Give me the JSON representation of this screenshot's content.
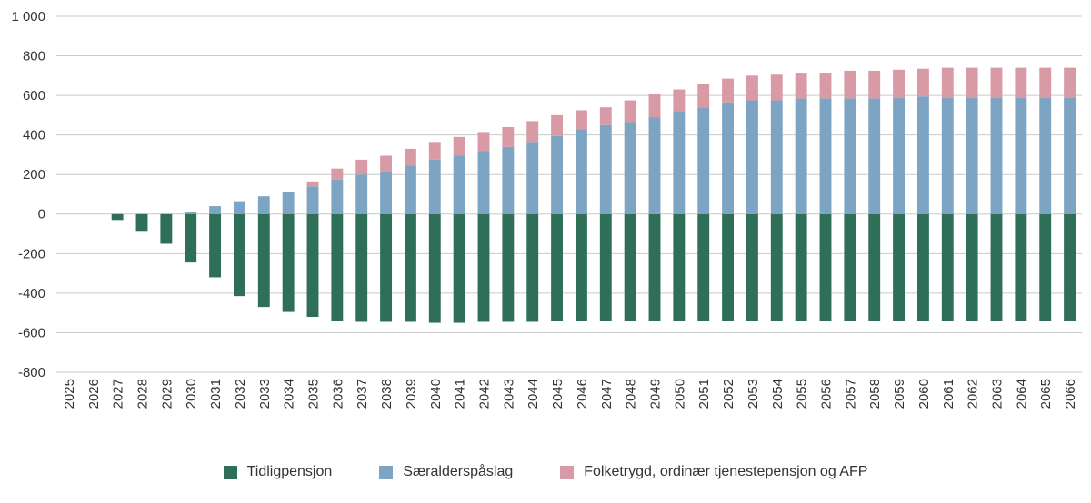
{
  "chart_data": {
    "type": "bar",
    "stacked": true,
    "title": "",
    "xlabel": "",
    "ylabel": "",
    "grid": true,
    "legend_position": "bottom",
    "ylim": [
      -800,
      1000
    ],
    "yticks": [
      1000,
      800,
      600,
      400,
      200,
      0,
      -200,
      -400,
      -600,
      -800
    ],
    "ytick_labels": [
      "1 000",
      "800",
      "600",
      "400",
      "200",
      "0",
      "-200",
      "-400",
      "-600",
      "-800"
    ],
    "categories": [
      "2025",
      "2026",
      "2027",
      "2028",
      "2029",
      "2030",
      "2031",
      "2032",
      "2033",
      "2034",
      "2035",
      "2036",
      "2037",
      "2038",
      "2039",
      "2040",
      "2041",
      "2042",
      "2043",
      "2044",
      "2045",
      "2046",
      "2047",
      "2048",
      "2049",
      "2050",
      "2051",
      "2052",
      "2053",
      "2054",
      "2055",
      "2056",
      "2057",
      "2058",
      "2059",
      "2060",
      "2061",
      "2062",
      "2063",
      "2064",
      "2065",
      "2066"
    ],
    "series": [
      {
        "name": "Tidligpensjon",
        "color": "#2f6f57",
        "values": [
          0,
          0,
          -30,
          -85,
          -150,
          -245,
          -320,
          -415,
          -470,
          -495,
          -520,
          -540,
          -545,
          -545,
          -545,
          -550,
          -550,
          -545,
          -545,
          -545,
          -540,
          -540,
          -540,
          -540,
          -540,
          -540,
          -540,
          -540,
          -540,
          -540,
          -540,
          -540,
          -540,
          -540,
          -540,
          -540,
          -540,
          -540,
          -540,
          -540,
          -540,
          -540
        ]
      },
      {
        "name": "Særalderspåslag",
        "color": "#7da5c3",
        "values": [
          0,
          0,
          0,
          0,
          0,
          10,
          40,
          65,
          90,
          110,
          140,
          175,
          200,
          215,
          245,
          275,
          295,
          320,
          340,
          365,
          395,
          430,
          450,
          465,
          490,
          520,
          540,
          565,
          575,
          575,
          585,
          585,
          585,
          585,
          590,
          595,
          590,
          590,
          590,
          590,
          590,
          590
        ]
      },
      {
        "name": "Folketrygd, ordinær tjenestepensjon og AFP",
        "color": "#d89ba6",
        "values": [
          0,
          0,
          0,
          0,
          0,
          0,
          0,
          0,
          0,
          0,
          25,
          55,
          75,
          80,
          85,
          90,
          95,
          95,
          100,
          105,
          105,
          95,
          90,
          110,
          115,
          110,
          120,
          120,
          125,
          130,
          130,
          130,
          140,
          140,
          140,
          140,
          150,
          150,
          150,
          150,
          150,
          150
        ]
      }
    ],
    "style": {
      "grid_color": "#c9c9c9",
      "text_color": "#333333",
      "background": "#ffffff"
    }
  }
}
